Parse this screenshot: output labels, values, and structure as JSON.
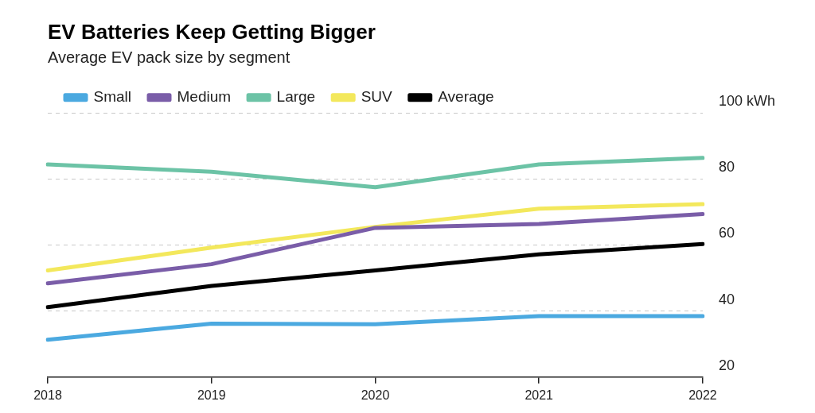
{
  "chart_data": {
    "type": "line",
    "title": "EV Batteries Keep Getting Bigger",
    "subtitle": "Average EV pack size by segment",
    "categories": [
      "2018",
      "2019",
      "2020",
      "2021",
      "2022"
    ],
    "series": [
      {
        "name": "Small",
        "color": "#4ba9e0",
        "values": [
          31.3,
          36.2,
          36.0,
          38.5,
          38.5
        ]
      },
      {
        "name": "Medium",
        "color": "#7a5da8",
        "values": [
          48.4,
          54.2,
          65.2,
          66.4,
          69.4
        ]
      },
      {
        "name": "Large",
        "color": "#6cc3a6",
        "values": [
          84.4,
          82.2,
          77.5,
          84.4,
          86.4
        ]
      },
      {
        "name": "SUV",
        "color": "#f3e85c",
        "values": [
          52.3,
          59.2,
          65.5,
          71.0,
          72.4
        ]
      },
      {
        "name": "Average",
        "color": "#000000",
        "values": [
          41.2,
          47.6,
          52.3,
          57.2,
          60.3
        ]
      }
    ],
    "ylim": [
      20,
      100
    ],
    "yticks": [
      20,
      40,
      60,
      80,
      {
        "value": 100,
        "label": "100 kWh"
      }
    ],
    "grid": true,
    "legend": "top-left"
  }
}
